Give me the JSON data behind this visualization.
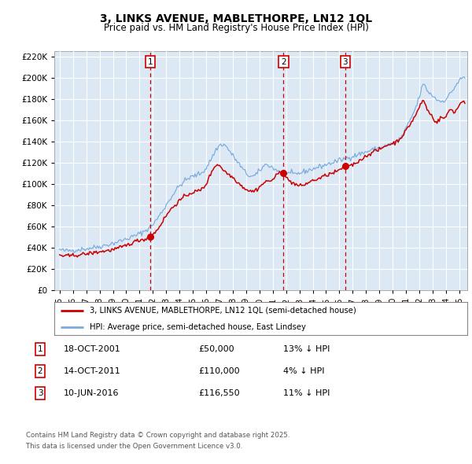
{
  "title_line1": "3, LINKS AVENUE, MABLETHORPE, LN12 1QL",
  "title_line2": "Price paid vs. HM Land Registry's House Price Index (HPI)",
  "background_color": "#dce9f5",
  "plot_bg_color": "#dce9f5",
  "red_line_color": "#cc0000",
  "blue_line_color": "#7aaadd",
  "grid_color": "#ffffff",
  "vline_color": "#cc0000",
  "transactions": [
    {
      "date_num": 2001.8,
      "price": 50000,
      "label": "1",
      "date_str": "18-OCT-2001",
      "price_str": "£50,000",
      "hpi_str": "13% ↓ HPI"
    },
    {
      "date_num": 2011.8,
      "price": 110000,
      "label": "2",
      "date_str": "14-OCT-2011",
      "price_str": "£110,000",
      "hpi_str": "4% ↓ HPI"
    },
    {
      "date_num": 2016.44,
      "price": 116550,
      "label": "3",
      "date_str": "10-JUN-2016",
      "price_str": "£116,550",
      "hpi_str": "11% ↓ HPI"
    }
  ],
  "ylim": [
    0,
    225000
  ],
  "yticks": [
    0,
    20000,
    40000,
    60000,
    80000,
    100000,
    120000,
    140000,
    160000,
    180000,
    200000,
    220000
  ],
  "ytick_labels": [
    "£0",
    "£20K",
    "£40K",
    "£60K",
    "£80K",
    "£100K",
    "£120K",
    "£140K",
    "£160K",
    "£180K",
    "£200K",
    "£220K"
  ],
  "xlim_start": 1994.6,
  "xlim_end": 2025.6,
  "legend_red": "3, LINKS AVENUE, MABLETHORPE, LN12 1QL (semi-detached house)",
  "legend_blue": "HPI: Average price, semi-detached house, East Lindsey",
  "footer_line1": "Contains HM Land Registry data © Crown copyright and database right 2025.",
  "footer_line2": "This data is licensed under the Open Government Licence v3.0."
}
